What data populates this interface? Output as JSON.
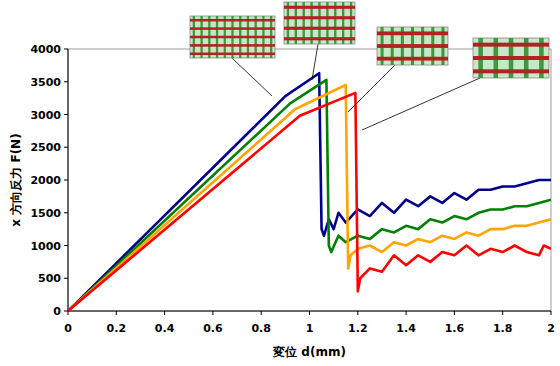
{
  "chart_data": {
    "type": "line",
    "x_label": "変位 d(mm)",
    "y_label": "x 方向反力 F(N)",
    "xlim": [
      0,
      2
    ],
    "xticks": [
      0,
      0.2,
      0.4,
      0.6,
      0.8,
      1,
      1.2,
      1.4,
      1.6,
      1.8,
      2
    ],
    "ylim": [
      0,
      4000
    ],
    "yticks": [
      0,
      500,
      1000,
      1500,
      2000,
      2500,
      3000,
      3500,
      4000
    ],
    "grid": false,
    "series": [
      {
        "color": "#00008b",
        "x": [
          0,
          0.9,
          1.04,
          1.05,
          1.06,
          1.08,
          1.1,
          1.12,
          1.15,
          1.2,
          1.25,
          1.3,
          1.35,
          1.4,
          1.45,
          1.5,
          1.55,
          1.6,
          1.65,
          1.7,
          1.75,
          1.8,
          1.85,
          1.9,
          1.95,
          2
        ],
        "values": [
          0,
          3280,
          3630,
          1250,
          1150,
          1400,
          1250,
          1500,
          1350,
          1550,
          1450,
          1650,
          1500,
          1700,
          1600,
          1750,
          1650,
          1800,
          1700,
          1850,
          1850,
          1900,
          1900,
          1950,
          2000,
          2000
        ]
      },
      {
        "color": "#008000",
        "x": [
          0,
          0.92,
          1.07,
          1.08,
          1.09,
          1.12,
          1.15,
          1.2,
          1.25,
          1.3,
          1.35,
          1.4,
          1.45,
          1.5,
          1.55,
          1.6,
          1.65,
          1.7,
          1.75,
          1.8,
          1.85,
          1.9,
          1.95,
          2
        ],
        "values": [
          0,
          3170,
          3530,
          1000,
          900,
          1150,
          1050,
          1150,
          1100,
          1250,
          1200,
          1300,
          1250,
          1400,
          1350,
          1450,
          1400,
          1500,
          1550,
          1550,
          1600,
          1600,
          1650,
          1700
        ]
      },
      {
        "color": "#ffa500",
        "x": [
          0,
          0.94,
          1.15,
          1.16,
          1.17,
          1.2,
          1.25,
          1.3,
          1.35,
          1.4,
          1.45,
          1.5,
          1.55,
          1.6,
          1.65,
          1.7,
          1.75,
          1.8,
          1.85,
          1.9,
          1.95,
          2
        ],
        "values": [
          0,
          3080,
          3450,
          650,
          850,
          950,
          1000,
          900,
          1050,
          1000,
          1100,
          1050,
          1150,
          1100,
          1200,
          1150,
          1250,
          1250,
          1300,
          1300,
          1350,
          1400
        ]
      },
      {
        "color": "#ff0000",
        "x": [
          0,
          0.96,
          1.19,
          1.2,
          1.21,
          1.25,
          1.3,
          1.35,
          1.4,
          1.45,
          1.5,
          1.55,
          1.6,
          1.65,
          1.7,
          1.75,
          1.8,
          1.85,
          1.9,
          1.95,
          1.97,
          2
        ],
        "values": [
          0,
          2980,
          3330,
          300,
          500,
          650,
          600,
          850,
          700,
          850,
          750,
          900,
          850,
          1000,
          850,
          950,
          900,
          1000,
          900,
          850,
          1000,
          950
        ]
      }
    ]
  }
}
